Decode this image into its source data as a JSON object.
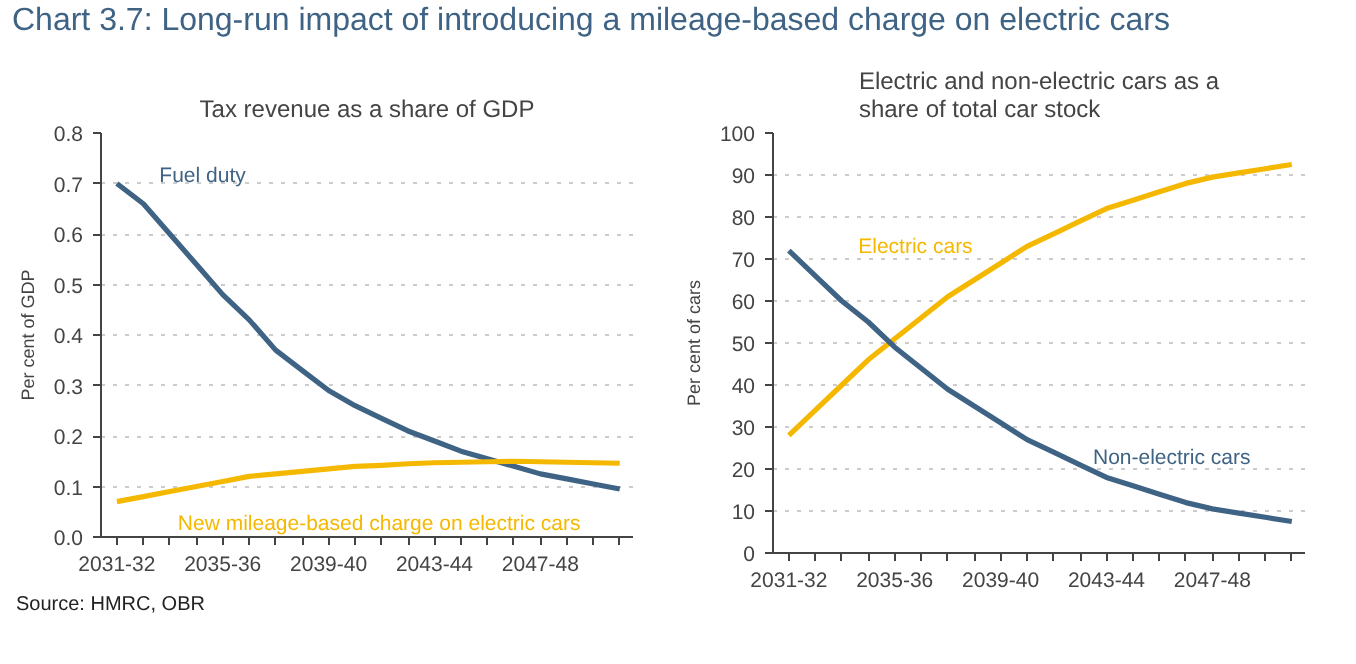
{
  "chart_data": [
    {
      "type": "line",
      "title": "Tax revenue as a share of GDP",
      "ylabel": "Per cent of GDP",
      "categories": [
        "2031-32",
        null,
        null,
        null,
        "2035-36",
        null,
        null,
        null,
        "2039-40",
        null,
        null,
        null,
        "2043-44",
        null,
        null,
        null,
        "2047-48",
        null,
        null,
        null
      ],
      "ylim": [
        0,
        0.8
      ],
      "yticks": [
        {
          "value": 0,
          "label": "0.0"
        },
        0.1,
        0.2,
        0.3,
        0.4,
        0.5,
        0.6,
        0.7,
        0.8
      ],
      "grid": "y",
      "line_style": "solid",
      "series": [
        {
          "name": "Fuel duty",
          "color": "#3f6384",
          "values": [
            0.7,
            0.66,
            0.6,
            0.54,
            0.48,
            0.43,
            0.37,
            0.33,
            0.29,
            0.26,
            0.235,
            0.21,
            0.19,
            0.17,
            0.155,
            0.14,
            0.125,
            0.115,
            0.105,
            0.095
          ]
        },
        {
          "name": "New mileage-based charge on electric cars",
          "color": "#f5b800",
          "values": [
            0.07,
            0.08,
            0.09,
            0.1,
            0.11,
            0.12,
            0.125,
            0.13,
            0.135,
            0.14,
            0.142,
            0.145,
            0.147,
            0.148,
            0.149,
            0.15,
            0.149,
            0.148,
            0.147,
            0.146
          ]
        }
      ],
      "annotations": [
        "Chart 3.7: Long-run impact of introducing a mileage-based charge on electric cars",
        "Source: HMRC, OBR"
      ]
    },
    {
      "type": "line",
      "title": "Electric and non-electric cars as a share of total car stock",
      "ylabel": "Per cent of cars",
      "categories": [
        "2031-32",
        null,
        null,
        null,
        "2035-36",
        null,
        null,
        null,
        "2039-40",
        null,
        null,
        null,
        "2043-44",
        null,
        null,
        null,
        "2047-48",
        null,
        null,
        null
      ],
      "ylim": [
        0,
        100
      ],
      "yticks": [
        0,
        10,
        20,
        30,
        40,
        50,
        60,
        70,
        80,
        90,
        100
      ],
      "grid": "y",
      "line_style": "solid",
      "series": [
        {
          "name": "Electric cars",
          "color": "#f5b800",
          "values": [
            28,
            34,
            40,
            46,
            51,
            56,
            61,
            65,
            69,
            73,
            76,
            79,
            82,
            84,
            86,
            88,
            89.5,
            90.5,
            91.5,
            92.5
          ]
        },
        {
          "name": "Non-electric cars",
          "color": "#3f6384",
          "values": [
            72,
            66,
            60,
            55,
            49,
            44,
            39,
            35,
            31,
            27,
            24,
            21,
            18,
            16,
            14,
            12,
            10.5,
            9.5,
            8.5,
            7.5
          ]
        }
      ]
    }
  ]
}
